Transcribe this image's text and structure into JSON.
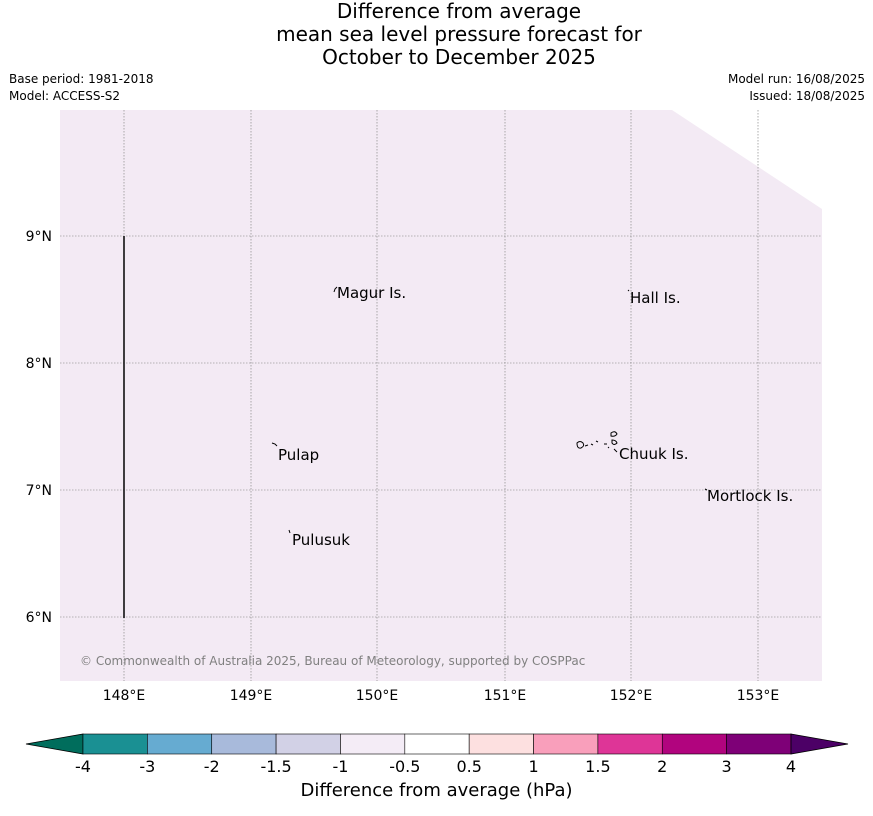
{
  "title": {
    "line1": "Difference from average",
    "line2": "mean sea level pressure forecast for",
    "line3": "October to December 2025"
  },
  "meta": {
    "base_period": "Base period: 1981-2018",
    "model": "Model: ACCESS-S2",
    "model_run": "Model run: 16/08/2025",
    "issued": "Issued: 18/08/2025"
  },
  "map": {
    "background_color": "#f3eaf4",
    "lat_labels": [
      "9°N",
      "8°N",
      "7°N",
      "6°N"
    ],
    "lon_labels": [
      "148°E",
      "149°E",
      "150°E",
      "151°E",
      "152°E",
      "153°E"
    ],
    "places": [
      "Magur Is.",
      "Hall Is.",
      "Pulap",
      "Chuuk Is.",
      "Mortlock Is.",
      "Pulusuk"
    ],
    "copyright": "© Commonwealth of Australia 2025, Bureau of Meteorology, supported by COSPPac"
  },
  "colorbar": {
    "label": "Difference from average (hPa)",
    "ticks": [
      "-4",
      "-3",
      "-2",
      "-1.5",
      "-1",
      "-0.5",
      "0.5",
      "1",
      "1.5",
      "2",
      "3",
      "4"
    ],
    "colors": [
      "#1a9093",
      "#66abd1",
      "#a8badb",
      "#d2d1e6",
      "#f4ecf6",
      "#ffffff",
      "#fde0e0",
      "#f99fbb",
      "#de3597",
      "#b1047e",
      "#7e0077"
    ],
    "under_color": "#006d5c",
    "over_color": "#4c0066"
  }
}
